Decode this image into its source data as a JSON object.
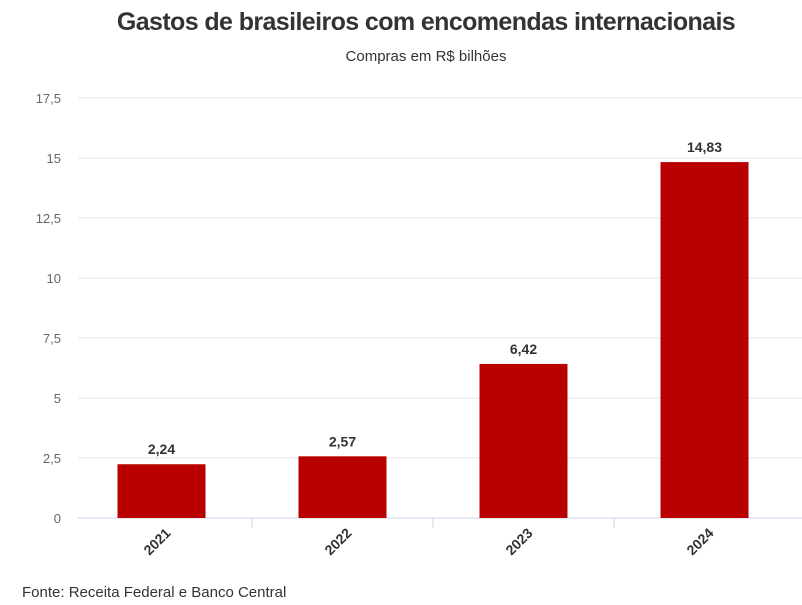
{
  "chart_data": {
    "type": "bar",
    "title": "Gastos de brasileiros com encomendas internacionais",
    "subtitle": "Compras em R$ bilhões",
    "categories": [
      "2021",
      "2022",
      "2023",
      "2024"
    ],
    "values": [
      2.24,
      2.57,
      6.42,
      14.83
    ],
    "data_labels": [
      "2,24",
      "2,57",
      "6,42",
      "14,83"
    ],
    "yticks": [
      0,
      2.5,
      5,
      7.5,
      10,
      12.5,
      15,
      17.5
    ],
    "ytick_labels": [
      "0",
      "2,5",
      "5",
      "7,5",
      "10",
      "12,5",
      "15",
      "17,5"
    ],
    "ylim": [
      0,
      17.5
    ],
    "xlabel": "",
    "ylabel": "",
    "grid": true,
    "legend": "none",
    "bar_color": "#b80000",
    "source": "Fonte: Receita Federal e Banco Central"
  }
}
